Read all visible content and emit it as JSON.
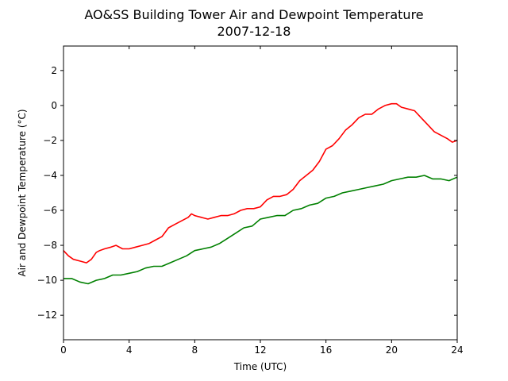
{
  "chart_data": {
    "type": "line",
    "title": "AO&SS Building Tower Air and Dewpoint Temperature",
    "subtitle": "2007-12-18",
    "xlabel": "Time (UTC)",
    "ylabel": "Air and Dewpoint Temperature (°C)",
    "xlim": [
      0,
      24
    ],
    "ylim": [
      -13.4,
      3.4
    ],
    "xticks": [
      0,
      4,
      8,
      12,
      16,
      20,
      24
    ],
    "xtick_labels": [
      "0",
      "4",
      "8",
      "12",
      "16",
      "20",
      "24"
    ],
    "yticks": [
      2,
      0,
      -2,
      -4,
      -6,
      -8,
      -10,
      -12
    ],
    "ytick_labels": [
      "2",
      "0",
      "−2",
      "−4",
      "−6",
      "−8",
      "−10",
      "−12"
    ],
    "grid": false,
    "series": [
      {
        "color": "#ff0000",
        "x": [
          0,
          0.3,
          0.6,
          1,
          1.4,
          1.7,
          2,
          2.2,
          2.5,
          2.9,
          3.2,
          3.6,
          4,
          4.4,
          4.8,
          5.2,
          5.6,
          6,
          6.4,
          6.8,
          7.2,
          7.6,
          7.8,
          8,
          8.4,
          8.8,
          9.2,
          9.6,
          10,
          10.4,
          10.8,
          11.2,
          11.6,
          12,
          12.4,
          12.8,
          13.2,
          13.6,
          14,
          14.4,
          14.8,
          15.2,
          15.6,
          16,
          16.4,
          16.8,
          17.2,
          17.6,
          18,
          18.4,
          18.8,
          19.2,
          19.6,
          20,
          20.3,
          20.6,
          21,
          21.4,
          21.8,
          22.2,
          22.6,
          23,
          23.4,
          23.7,
          24
        ],
        "y": [
          -8.3,
          -8.6,
          -8.8,
          -8.9,
          -9.0,
          -8.8,
          -8.4,
          -8.3,
          -8.2,
          -8.1,
          -8.0,
          -8.2,
          -8.2,
          -8.1,
          -8.0,
          -7.9,
          -7.7,
          -7.5,
          -7.0,
          -6.8,
          -6.6,
          -6.4,
          -6.2,
          -6.3,
          -6.4,
          -6.5,
          -6.4,
          -6.3,
          -6.3,
          -6.2,
          -6.0,
          -5.9,
          -5.9,
          -5.8,
          -5.4,
          -5.2,
          -5.2,
          -5.1,
          -4.8,
          -4.3,
          -4.0,
          -3.7,
          -3.2,
          -2.5,
          -2.3,
          -1.9,
          -1.4,
          -1.1,
          -0.7,
          -0.5,
          -0.5,
          -0.2,
          0.0,
          0.1,
          0.1,
          -0.1,
          -0.2,
          -0.3,
          -0.7,
          -1.1,
          -1.5,
          -1.7,
          -1.9,
          -2.1,
          -2.0
        ]
      },
      {
        "color": "#008000",
        "x": [
          0,
          0.5,
          1,
          1.5,
          2,
          2.5,
          3,
          3.5,
          4,
          4.5,
          5,
          5.5,
          6,
          6.5,
          7,
          7.5,
          8,
          8.5,
          9,
          9.5,
          10,
          10.5,
          11,
          11.5,
          12,
          12.5,
          13,
          13.5,
          14,
          14.5,
          15,
          15.5,
          16,
          16.5,
          17,
          17.5,
          18,
          18.5,
          19,
          19.5,
          20,
          20.5,
          21,
          21.5,
          22,
          22.5,
          23,
          23.5,
          24
        ],
        "y": [
          -9.9,
          -9.9,
          -10.1,
          -10.2,
          -10.0,
          -9.9,
          -9.7,
          -9.7,
          -9.6,
          -9.5,
          -9.3,
          -9.2,
          -9.2,
          -9.0,
          -8.8,
          -8.6,
          -8.3,
          -8.2,
          -8.1,
          -7.9,
          -7.6,
          -7.3,
          -7.0,
          -6.9,
          -6.5,
          -6.4,
          -6.3,
          -6.3,
          -6.0,
          -5.9,
          -5.7,
          -5.6,
          -5.3,
          -5.2,
          -5.0,
          -4.9,
          -4.8,
          -4.7,
          -4.6,
          -4.5,
          -4.3,
          -4.2,
          -4.1,
          -4.1,
          -4.0,
          -4.2,
          -4.2,
          -4.3,
          -4.1
        ]
      }
    ]
  }
}
